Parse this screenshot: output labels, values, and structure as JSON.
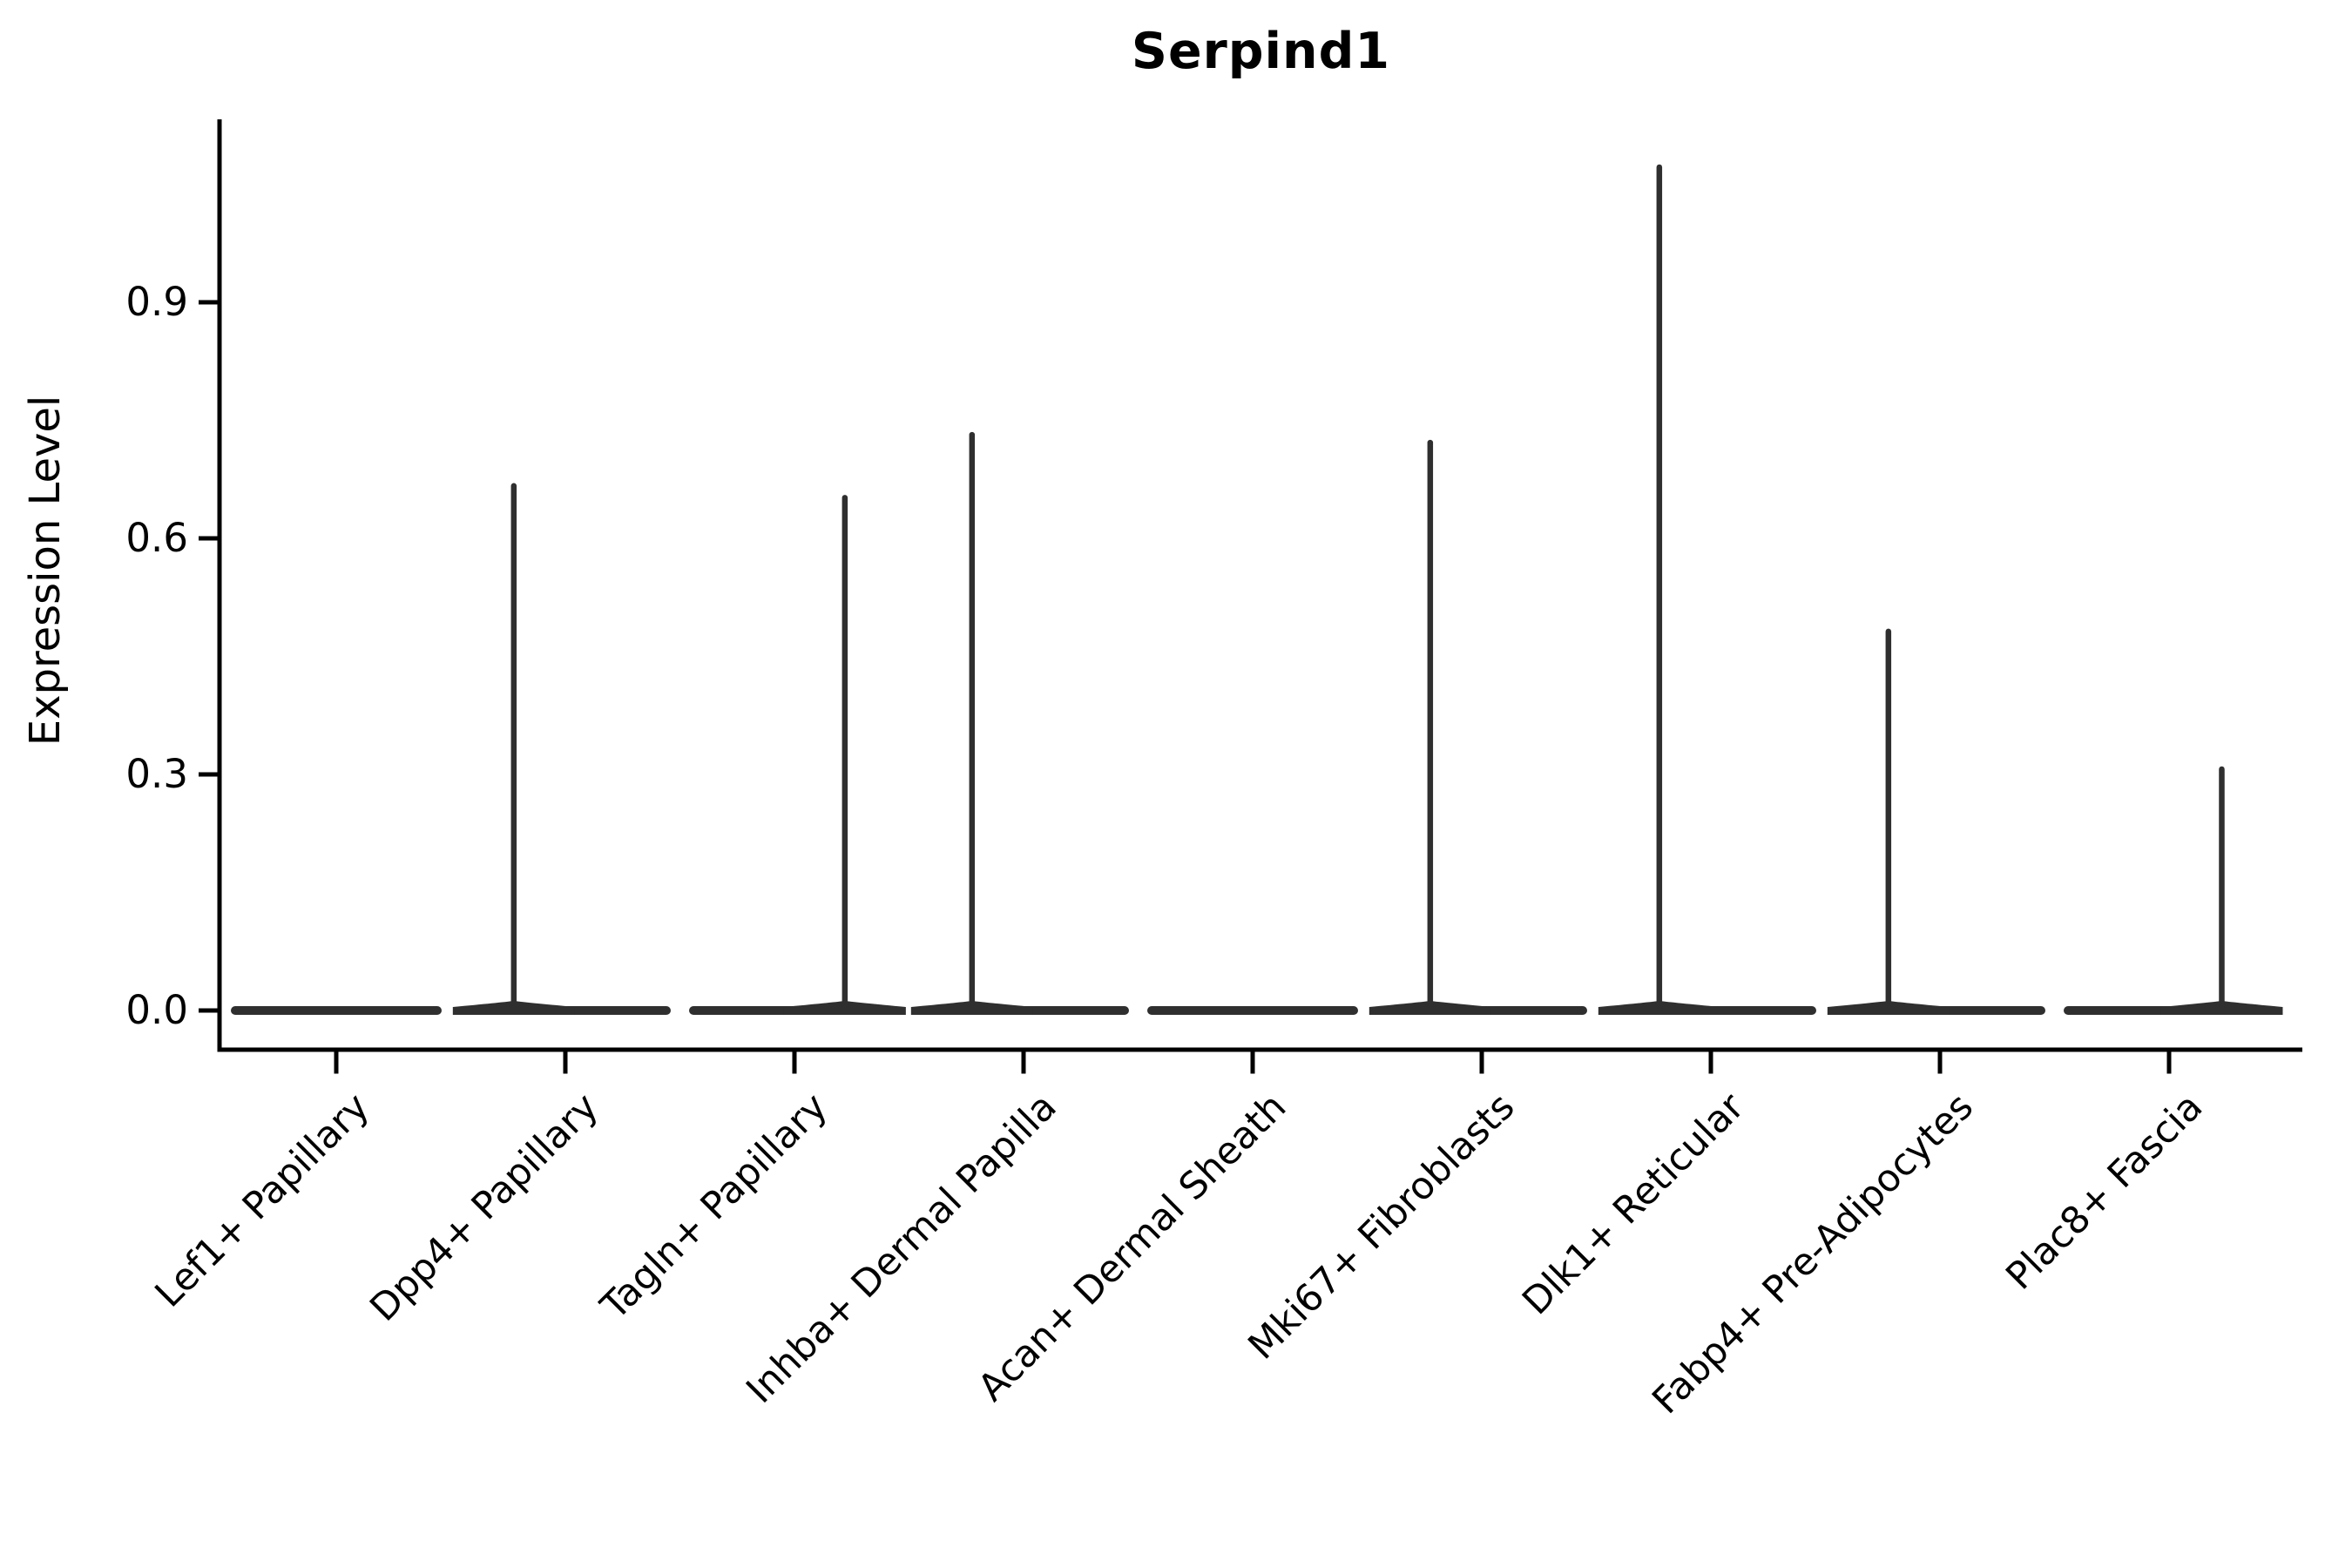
{
  "figure": {
    "title": "Serpind1",
    "background": "#ffffff"
  },
  "chart_data": {
    "type": "violin",
    "title": "Serpind1",
    "xlabel": "",
    "ylabel": "Expression Level",
    "categories": [
      "Lef1+ Papillary",
      "Dpp4+ Papillary",
      "Tagln+ Papillary",
      "Inhba+ Dermal Papilla",
      "Acan+ Dermal Sheath",
      "Mki67+ Fibroblasts",
      "Dlk1+ Reticular",
      "Fabp4+ Pre-Adipocytes",
      "Plac8+ Fascia"
    ],
    "ytick_labels": [
      "0.0",
      "0.3",
      "0.6",
      "0.9"
    ],
    "yticks": [
      0.0,
      0.3,
      0.6,
      0.9
    ],
    "ylim": [
      -0.05,
      1.13
    ],
    "grid": false,
    "legend": "none",
    "violins": [
      {
        "category": "Lef1+ Papillary",
        "min": 0,
        "max": 0,
        "shape": "flat-at-zero",
        "tail_offset_frac": 0
      },
      {
        "category": "Dpp4+ Papillary",
        "min": 0,
        "max": 0.67,
        "shape": "flat-at-zero-with-tail",
        "tail_offset_frac": -0.225
      },
      {
        "category": "Tagln+ Papillary",
        "min": 0,
        "max": 0.655,
        "shape": "flat-at-zero-with-tail",
        "tail_offset_frac": 0.22
      },
      {
        "category": "Inhba+ Dermal Papilla",
        "min": 0,
        "max": 0.735,
        "shape": "flat-at-zero-with-tail",
        "tail_offset_frac": -0.225
      },
      {
        "category": "Acan+ Dermal Sheath",
        "min": 0,
        "max": 0,
        "shape": "flat-at-zero",
        "tail_offset_frac": 0
      },
      {
        "category": "Mki67+ Fibroblasts",
        "min": 0,
        "max": 0.725,
        "shape": "flat-at-zero-with-tail",
        "tail_offset_frac": -0.225
      },
      {
        "category": "Dlk1+ Reticular",
        "min": 0,
        "max": 1.075,
        "shape": "flat-at-zero-with-tail",
        "tail_offset_frac": -0.225
      },
      {
        "category": "Fabp4+ Pre-Adipocytes",
        "min": 0,
        "max": 0.485,
        "shape": "flat-at-zero-with-tail",
        "tail_offset_frac": -0.225
      },
      {
        "category": "Plac8+ Fascia",
        "min": 0,
        "max": 0.31,
        "shape": "flat-at-zero-with-tail",
        "tail_offset_frac": 0.23
      }
    ],
    "colors": {
      "violin": "#2f2f2f",
      "axis": "#000000",
      "text": "#000000",
      "background": "#ffffff"
    }
  }
}
